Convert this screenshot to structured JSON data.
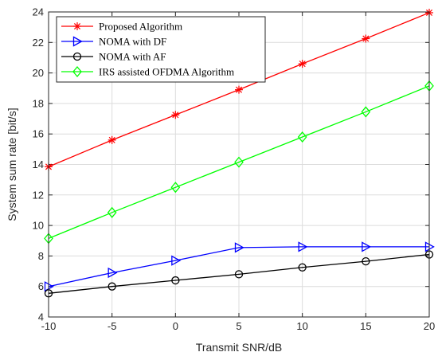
{
  "chart_data": {
    "type": "line",
    "xlabel": "Transmit SNR/dB",
    "ylabel": "System sum rate [bit/s]",
    "x": [
      -10,
      -5,
      0,
      5,
      10,
      15,
      20
    ],
    "xlim": [
      -10,
      20
    ],
    "ylim": [
      4,
      24
    ],
    "xticks": [
      -10,
      -5,
      0,
      5,
      10,
      15,
      20
    ],
    "yticks": [
      4,
      6,
      8,
      10,
      12,
      14,
      16,
      18,
      20,
      22,
      24
    ],
    "grid": true,
    "legend_position": "top-left",
    "series": [
      {
        "name": "Proposed Algorithm",
        "color": "#ff0000",
        "marker": "asterisk",
        "values": [
          13.85,
          15.6,
          17.25,
          18.9,
          20.6,
          22.25,
          23.95
        ]
      },
      {
        "name": "NOMA with DF",
        "color": "#0000ff",
        "marker": "triangle-right",
        "values": [
          6.0,
          6.9,
          7.7,
          8.55,
          8.6,
          8.6,
          8.6
        ]
      },
      {
        "name": "NOMA with AF",
        "color": "#000000",
        "marker": "circle",
        "values": [
          5.55,
          6.0,
          6.4,
          6.8,
          7.25,
          7.65,
          8.1
        ]
      },
      {
        "name": "IRS assisted OFDMA Algorithm",
        "color": "#00ff00",
        "marker": "diamond",
        "values": [
          9.15,
          10.85,
          12.5,
          14.15,
          15.8,
          17.45,
          19.15
        ]
      }
    ]
  }
}
